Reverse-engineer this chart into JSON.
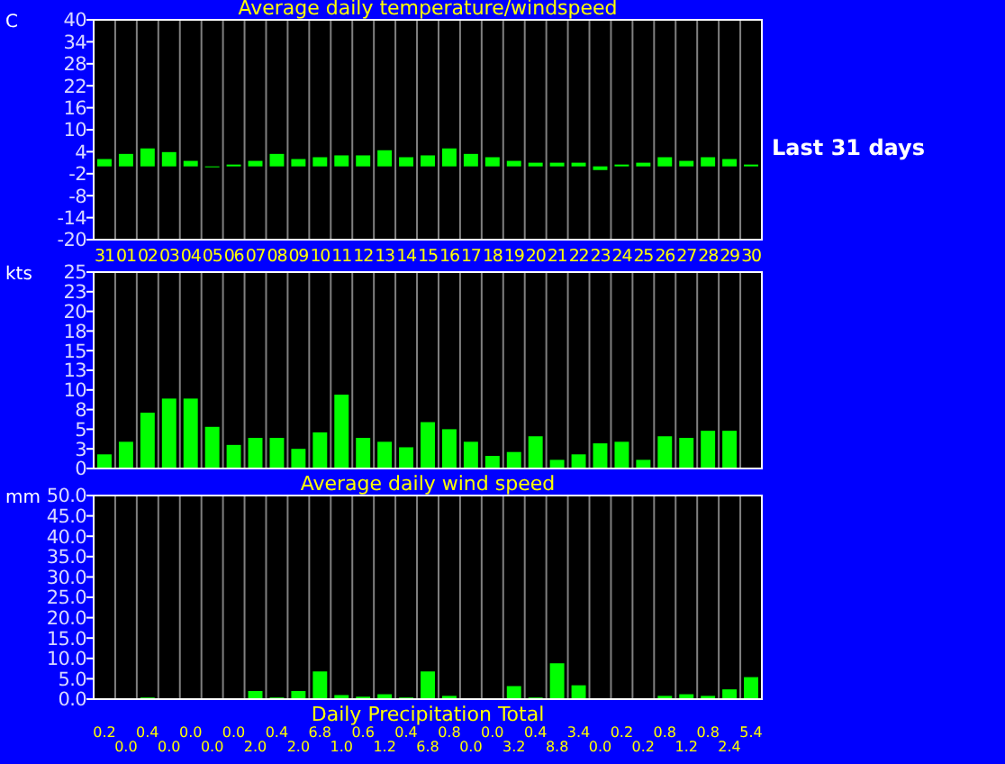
{
  "chart_data": [
    {
      "type": "bar",
      "title": "Average daily temperature/windspeed",
      "ylabel": "C",
      "annotations": [
        "Last 31 days"
      ],
      "categories": [
        "31",
        "01",
        "02",
        "03",
        "04",
        "05",
        "06",
        "07",
        "08",
        "09",
        "10",
        "11",
        "12",
        "13",
        "14",
        "15",
        "16",
        "17",
        "18",
        "19",
        "20",
        "21",
        "22",
        "23",
        "24",
        "25",
        "26",
        "27",
        "28",
        "29",
        "30"
      ],
      "series": [
        {
          "color": "#00ff00",
          "values": [
            2.0,
            3.4,
            4.9,
            3.9,
            1.5,
            0.0,
            0.5,
            1.5,
            3.4,
            2.0,
            2.5,
            3.0,
            3.0,
            4.4,
            2.5,
            3.0,
            4.9,
            3.4,
            2.5,
            1.5,
            1.0,
            1.0,
            1.0,
            -1.0,
            0.5,
            1.0,
            2.5,
            1.5,
            2.5,
            2.0,
            0.5
          ]
        }
      ],
      "ylim": [
        -20,
        40
      ],
      "yticks": [
        -20,
        -14,
        -8,
        -2,
        4,
        10,
        16,
        22,
        28,
        34,
        40
      ],
      "grid": "x"
    },
    {
      "type": "bar",
      "xlabel": "Average daily wind speed",
      "ylabel": "kts",
      "categories": [
        "31",
        "01",
        "02",
        "03",
        "04",
        "05",
        "06",
        "07",
        "08",
        "09",
        "10",
        "11",
        "12",
        "13",
        "14",
        "15",
        "16",
        "17",
        "18",
        "19",
        "20",
        "21",
        "22",
        "23",
        "24",
        "25",
        "26",
        "27",
        "28",
        "29",
        "30"
      ],
      "series": [
        {
          "color": "#00ff00",
          "values": [
            1.8,
            3.4,
            7.1,
            8.9,
            8.9,
            5.3,
            3.0,
            3.9,
            3.9,
            2.5,
            4.6,
            9.4,
            3.9,
            3.4,
            2.7,
            5.9,
            5.0,
            3.4,
            1.6,
            2.1,
            4.1,
            1.1,
            1.8,
            3.2,
            3.4,
            1.1,
            4.1,
            3.9,
            4.8,
            4.8,
            null
          ]
        }
      ],
      "ylim": [
        0,
        25
      ],
      "yticks": [
        0,
        {
          "value": 2.5,
          "label": "3"
        },
        5,
        {
          "value": 7.5,
          "label": "8"
        },
        10,
        {
          "value": 12.5,
          "label": "13"
        },
        15,
        {
          "value": 17.5,
          "label": "18"
        },
        20,
        {
          "value": 22.5,
          "label": "23"
        },
        25
      ],
      "grid": "x",
      "tick_labels": "y"
    },
    {
      "type": "bar",
      "xlabel": "Daily Precipitation Total",
      "ylabel": "mm",
      "categories": [
        "31",
        "01",
        "02",
        "03",
        "04",
        "05",
        "06",
        "07",
        "08",
        "09",
        "10",
        "11",
        "12",
        "13",
        "14",
        "15",
        "16",
        "17",
        "18",
        "19",
        "20",
        "21",
        "22",
        "23",
        "24",
        "25",
        "26",
        "27",
        "28",
        "29",
        "30"
      ],
      "series": [
        {
          "color": "#00ff00",
          "values": [
            0.2,
            0.0,
            0.4,
            0.0,
            0.0,
            0.0,
            0.0,
            2.0,
            0.4,
            2.0,
            6.8,
            1.0,
            0.6,
            1.2,
            0.4,
            6.8,
            0.8,
            0.0,
            0.0,
            3.2,
            0.4,
            8.8,
            3.4,
            0.0,
            0.2,
            0.2,
            0.8,
            1.2,
            0.8,
            2.4,
            5.4
          ],
          "value_labels": [
            "0.2",
            "0.0",
            "0.4",
            "0.0",
            "0.0",
            "0.0",
            "0.0",
            "2.0",
            "0.4",
            "2.0",
            "6.8",
            "1.0",
            "0.6",
            "1.2",
            "0.4",
            "6.8",
            "0.8",
            "0.0",
            "0.0",
            "3.2",
            "0.4",
            "8.8",
            "3.4",
            "0.0",
            "0.2",
            "0.2",
            "0.8",
            "1.2",
            "0.8",
            "2.4",
            "5.4"
          ]
        }
      ],
      "ylim": [
        0,
        50
      ],
      "yticks": [
        {
          "value": 0,
          "label": "0.0"
        },
        {
          "value": 5,
          "label": "5.0"
        },
        {
          "value": 10,
          "label": "10.0"
        },
        {
          "value": 15,
          "label": "15.0"
        },
        {
          "value": 20,
          "label": "20.0"
        },
        {
          "value": 25,
          "label": "25.0"
        },
        {
          "value": 30,
          "label": "30.0"
        },
        {
          "value": 35,
          "label": "35.0"
        },
        {
          "value": 40,
          "label": "40.0"
        },
        {
          "value": 45,
          "label": "45.0"
        },
        {
          "value": 50,
          "label": "50.0"
        }
      ],
      "grid": "x",
      "tick_labels": "y"
    }
  ]
}
